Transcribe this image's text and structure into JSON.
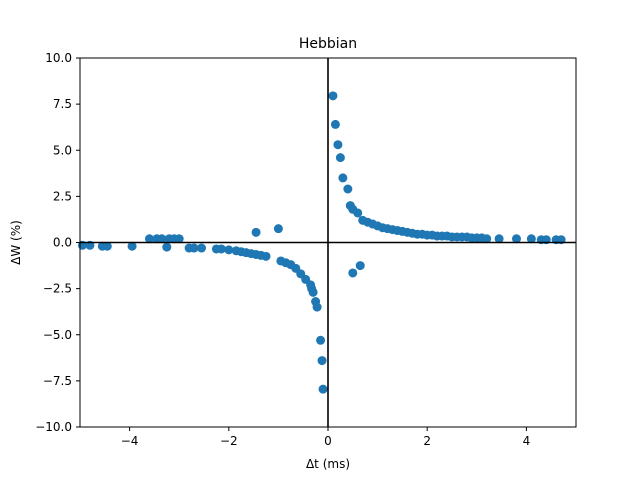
{
  "chart_data": {
    "type": "scatter",
    "title": "Hebbian",
    "xlabel": "Δt (ms)",
    "ylabel": "ΔW (%)",
    "xlim": [
      -5,
      5
    ],
    "ylim": [
      -10,
      10
    ],
    "xticks": [
      -4,
      -2,
      0,
      2,
      4
    ],
    "xtick_labels": [
      "−4",
      "−2",
      "0",
      "2",
      "4"
    ],
    "yticks": [
      -10,
      -7.5,
      -5,
      -2.5,
      0,
      2.5,
      5,
      7.5,
      10
    ],
    "ytick_labels": [
      "−10.0",
      "−7.5",
      "−5.0",
      "−2.5",
      "0.0",
      "2.5",
      "5.0",
      "7.5",
      "10.0"
    ],
    "reference_lines": {
      "horizontal_at_y": 0,
      "vertical_at_x": 0
    },
    "grid": false,
    "marker_color": "#1f77b4",
    "series": [
      {
        "x": [
          -4.95,
          -4.8,
          -4.55,
          -4.45,
          -3.95,
          -3.6,
          -3.45,
          -3.35,
          -3.2,
          -3.1,
          -3.0,
          -2.8,
          -2.7,
          -2.55,
          -2.25,
          -2.15,
          -2.0,
          -1.85,
          -1.75,
          -1.65,
          -1.55,
          -1.45,
          -1.35,
          -1.25,
          -0.95,
          -0.85,
          -0.75,
          -0.65,
          -0.55,
          -0.45,
          -0.35,
          -0.33,
          -0.3,
          -0.25,
          -0.22,
          -0.15,
          -0.12,
          -0.1,
          -1.45,
          -1.0,
          -3.25,
          0.1,
          0.15,
          0.2,
          0.25,
          0.3,
          0.4,
          0.45,
          0.5,
          0.6,
          0.7,
          0.8,
          0.9,
          1.0,
          1.1,
          1.2,
          1.3,
          1.4,
          1.5,
          1.6,
          1.7,
          1.8,
          1.9,
          2.0,
          2.1,
          2.2,
          2.3,
          2.4,
          2.5,
          2.6,
          2.7,
          2.8,
          2.9,
          3.0,
          3.1,
          3.2,
          3.45,
          3.8,
          4.1,
          4.3,
          4.4,
          4.6,
          4.7,
          0.5,
          0.65
        ],
        "y": [
          -0.15,
          -0.15,
          -0.2,
          -0.2,
          -0.2,
          0.2,
          0.2,
          0.2,
          0.2,
          0.2,
          0.2,
          -0.3,
          -0.3,
          -0.3,
          -0.35,
          -0.35,
          -0.4,
          -0.45,
          -0.5,
          -0.55,
          -0.6,
          -0.65,
          -0.7,
          -0.75,
          -1.0,
          -1.1,
          -1.2,
          -1.4,
          -1.7,
          -2.0,
          -2.3,
          -2.5,
          -2.7,
          -3.2,
          -3.5,
          -5.3,
          -6.4,
          -7.95,
          0.55,
          0.75,
          -0.25,
          7.95,
          6.4,
          5.3,
          4.6,
          3.5,
          2.9,
          2.0,
          1.8,
          1.6,
          1.2,
          1.1,
          1.0,
          0.9,
          0.8,
          0.75,
          0.7,
          0.65,
          0.6,
          0.55,
          0.5,
          0.45,
          0.45,
          0.4,
          0.4,
          0.35,
          0.35,
          0.35,
          0.3,
          0.3,
          0.3,
          0.3,
          0.25,
          0.25,
          0.25,
          0.2,
          0.2,
          0.2,
          0.2,
          0.15,
          0.15,
          0.15,
          0.15,
          -1.65,
          -1.25
        ]
      }
    ]
  }
}
